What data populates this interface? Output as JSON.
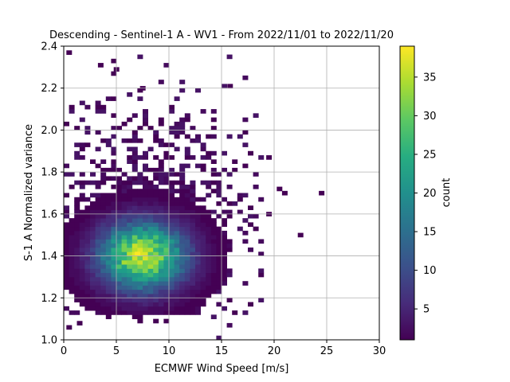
{
  "chart_data": {
    "type": "heatmap",
    "title": "Descending - Sentinel-1 A - WV1 - From 2022/11/01 to 2022/11/20",
    "xlabel": "ECMWF Wind Speed [m/s]",
    "ylabel": "S-1 A Normalized variance",
    "xlim": [
      0,
      30
    ],
    "ylim": [
      1.0,
      2.4
    ],
    "xticks": [
      "0",
      "5",
      "10",
      "15",
      "20",
      "25",
      "30"
    ],
    "yticks": [
      "1.0",
      "1.2",
      "1.4",
      "1.6",
      "1.8",
      "2.0",
      "2.2",
      "2.4"
    ],
    "grid": true,
    "colormap": "viridis",
    "colorbar": {
      "label": "count",
      "range": [
        1,
        39
      ],
      "ticks": [
        "5",
        "10",
        "15",
        "20",
        "25",
        "30",
        "35"
      ]
    },
    "peak": {
      "x": 7.0,
      "y": 1.41,
      "count": 39
    },
    "density_core": {
      "x_center": 7.5,
      "y_center": 1.4,
      "x_spread": 2.8,
      "y_spread": 0.11
    },
    "outliers": [
      {
        "x": 24.5,
        "y": 1.7,
        "count": 1
      },
      {
        "x": 22.5,
        "y": 1.5,
        "count": 1
      },
      {
        "x": 21.0,
        "y": 1.7,
        "count": 1
      },
      {
        "x": 20.5,
        "y": 1.72,
        "count": 1
      },
      {
        "x": 19.5,
        "y": 1.87,
        "count": 1
      },
      {
        "x": 19.5,
        "y": 1.6,
        "count": 1
      },
      {
        "x": 15.8,
        "y": 2.21,
        "count": 1
      },
      {
        "x": 7.5,
        "y": 2.2,
        "count": 1
      },
      {
        "x": 3.5,
        "y": 2.31,
        "count": 1
      },
      {
        "x": 5.0,
        "y": 2.29,
        "count": 1
      },
      {
        "x": 0.5,
        "y": 2.37,
        "count": 1
      },
      {
        "x": 0.5,
        "y": 1.06,
        "count": 1
      },
      {
        "x": 1.5,
        "y": 1.08,
        "count": 1
      }
    ]
  }
}
